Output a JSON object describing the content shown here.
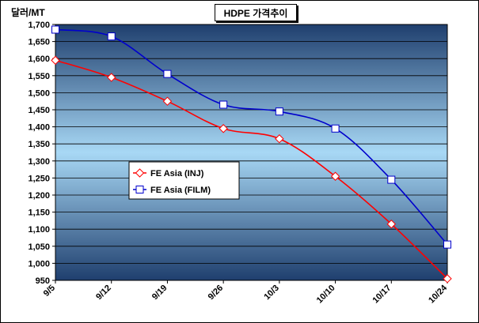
{
  "chart_data": {
    "type": "line",
    "title": "HDPE 가격추이",
    "ylabel": "달러/MT",
    "xlabel": "",
    "categories": [
      "9/5",
      "9/12",
      "9/19",
      "9/26",
      "10/3",
      "10/10",
      "10/17",
      "10/24"
    ],
    "ylim": [
      950,
      1700
    ],
    "ytick_step": 50,
    "yticks": [
      "950",
      "1,000",
      "1,050",
      "1,100",
      "1,150",
      "1,200",
      "1,250",
      "1,300",
      "1,350",
      "1,400",
      "1,450",
      "1,500",
      "1,550",
      "1,600",
      "1,650",
      "1,700"
    ],
    "series": [
      {
        "name": "FE Asia (INJ)",
        "color": "#ff0000",
        "marker": "diamond",
        "values": [
          1595,
          1545,
          1475,
          1395,
          1365,
          1255,
          1115,
          955
        ]
      },
      {
        "name": "FE Asia (FILM)",
        "color": "#0000cc",
        "marker": "square",
        "values": [
          1685,
          1665,
          1555,
          1465,
          1445,
          1395,
          1245,
          1055
        ]
      }
    ],
    "grid": true,
    "legend_position": "center-left"
  }
}
